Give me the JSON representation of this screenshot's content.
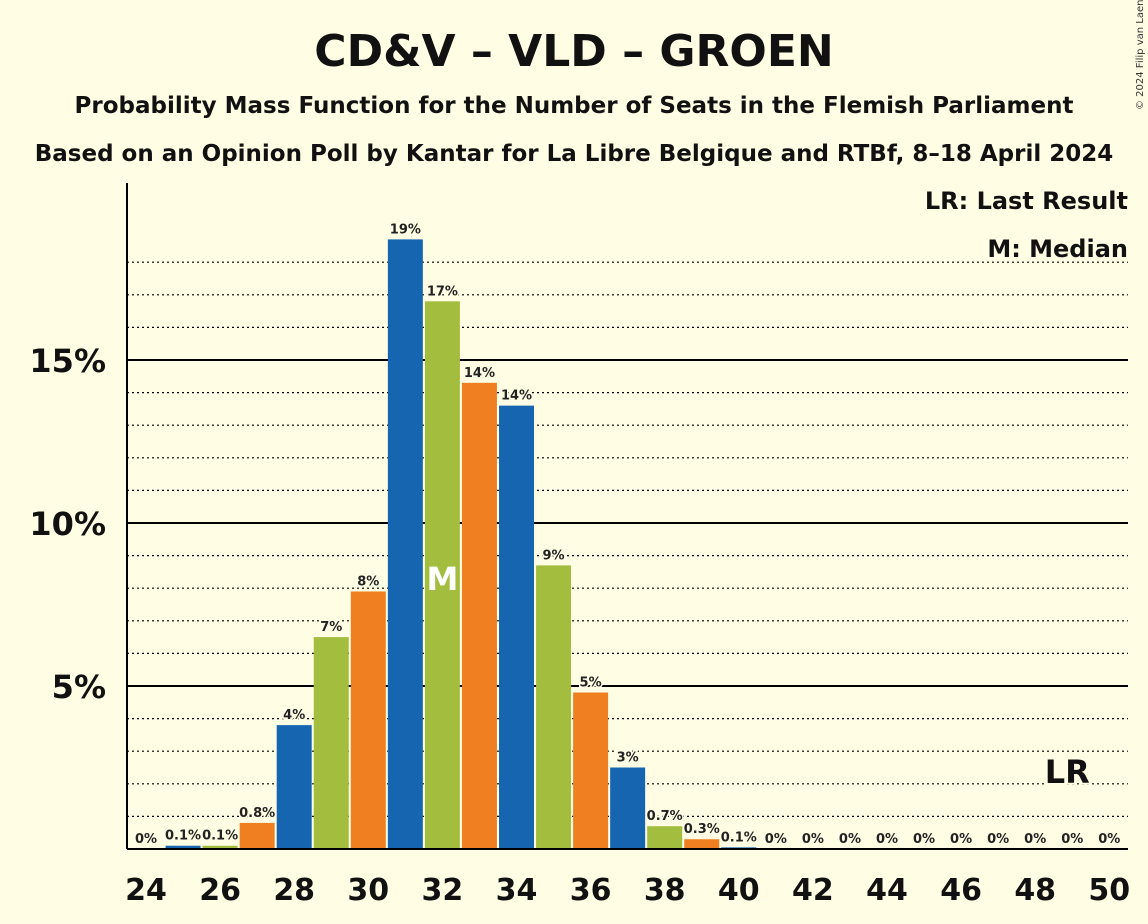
{
  "title": "CD&V – VLD – GROEN",
  "subtitle1": "Probability Mass Function for the Number of Seats in the Flemish Parliament",
  "subtitle2": "Based on an Opinion Poll by Kantar for La Libre Belgique and RTBf, 8–18 April 2024",
  "copyright": "© 2024 Filip van Laenen",
  "legend": {
    "last_result": "LR: Last Result",
    "median": "M: Median"
  },
  "colors": {
    "background": "#FFFEE5",
    "cycle": [
      "#1565B0",
      "#A3BE3E",
      "#F07F22"
    ]
  },
  "chart_data": {
    "type": "bar",
    "x": [
      24,
      25,
      26,
      27,
      28,
      29,
      30,
      31,
      32,
      33,
      34,
      35,
      36,
      37,
      38,
      39,
      40,
      41,
      42,
      43,
      44,
      45,
      46,
      47,
      48,
      49,
      50
    ],
    "values": [
      0,
      0.1,
      0.1,
      0.8,
      3.8,
      6.5,
      7.9,
      18.7,
      16.8,
      14.3,
      13.6,
      8.7,
      4.8,
      2.5,
      0.7,
      0.3,
      0.05,
      0,
      0,
      0,
      0,
      0,
      0,
      0,
      0,
      0,
      0
    ],
    "labels": [
      "0%",
      "0.1%",
      "0.1%",
      "0.8%",
      "4%",
      "7%",
      "8%",
      "19%",
      "17%",
      "14%",
      "14%",
      "9%",
      "5%",
      "3%",
      "0.7%",
      "0.3%",
      "0.1%",
      "0%",
      "0%",
      "0%",
      "0%",
      "0%",
      "0%",
      "0%",
      "0%",
      "0%",
      "0%"
    ],
    "x_ticks": [
      24,
      26,
      28,
      30,
      32,
      34,
      36,
      38,
      40,
      42,
      44,
      46,
      48,
      50
    ],
    "y_ticks": [
      5,
      10,
      15
    ],
    "y_tick_labels": [
      "5%",
      "10%",
      "15%"
    ],
    "ylim": [
      0,
      20.3
    ],
    "median_seat": 32,
    "median_marker": "M",
    "last_result_seat": 49,
    "last_result_marker": "LR",
    "grid": "dotted minor every 1%, solid major every 5%"
  }
}
